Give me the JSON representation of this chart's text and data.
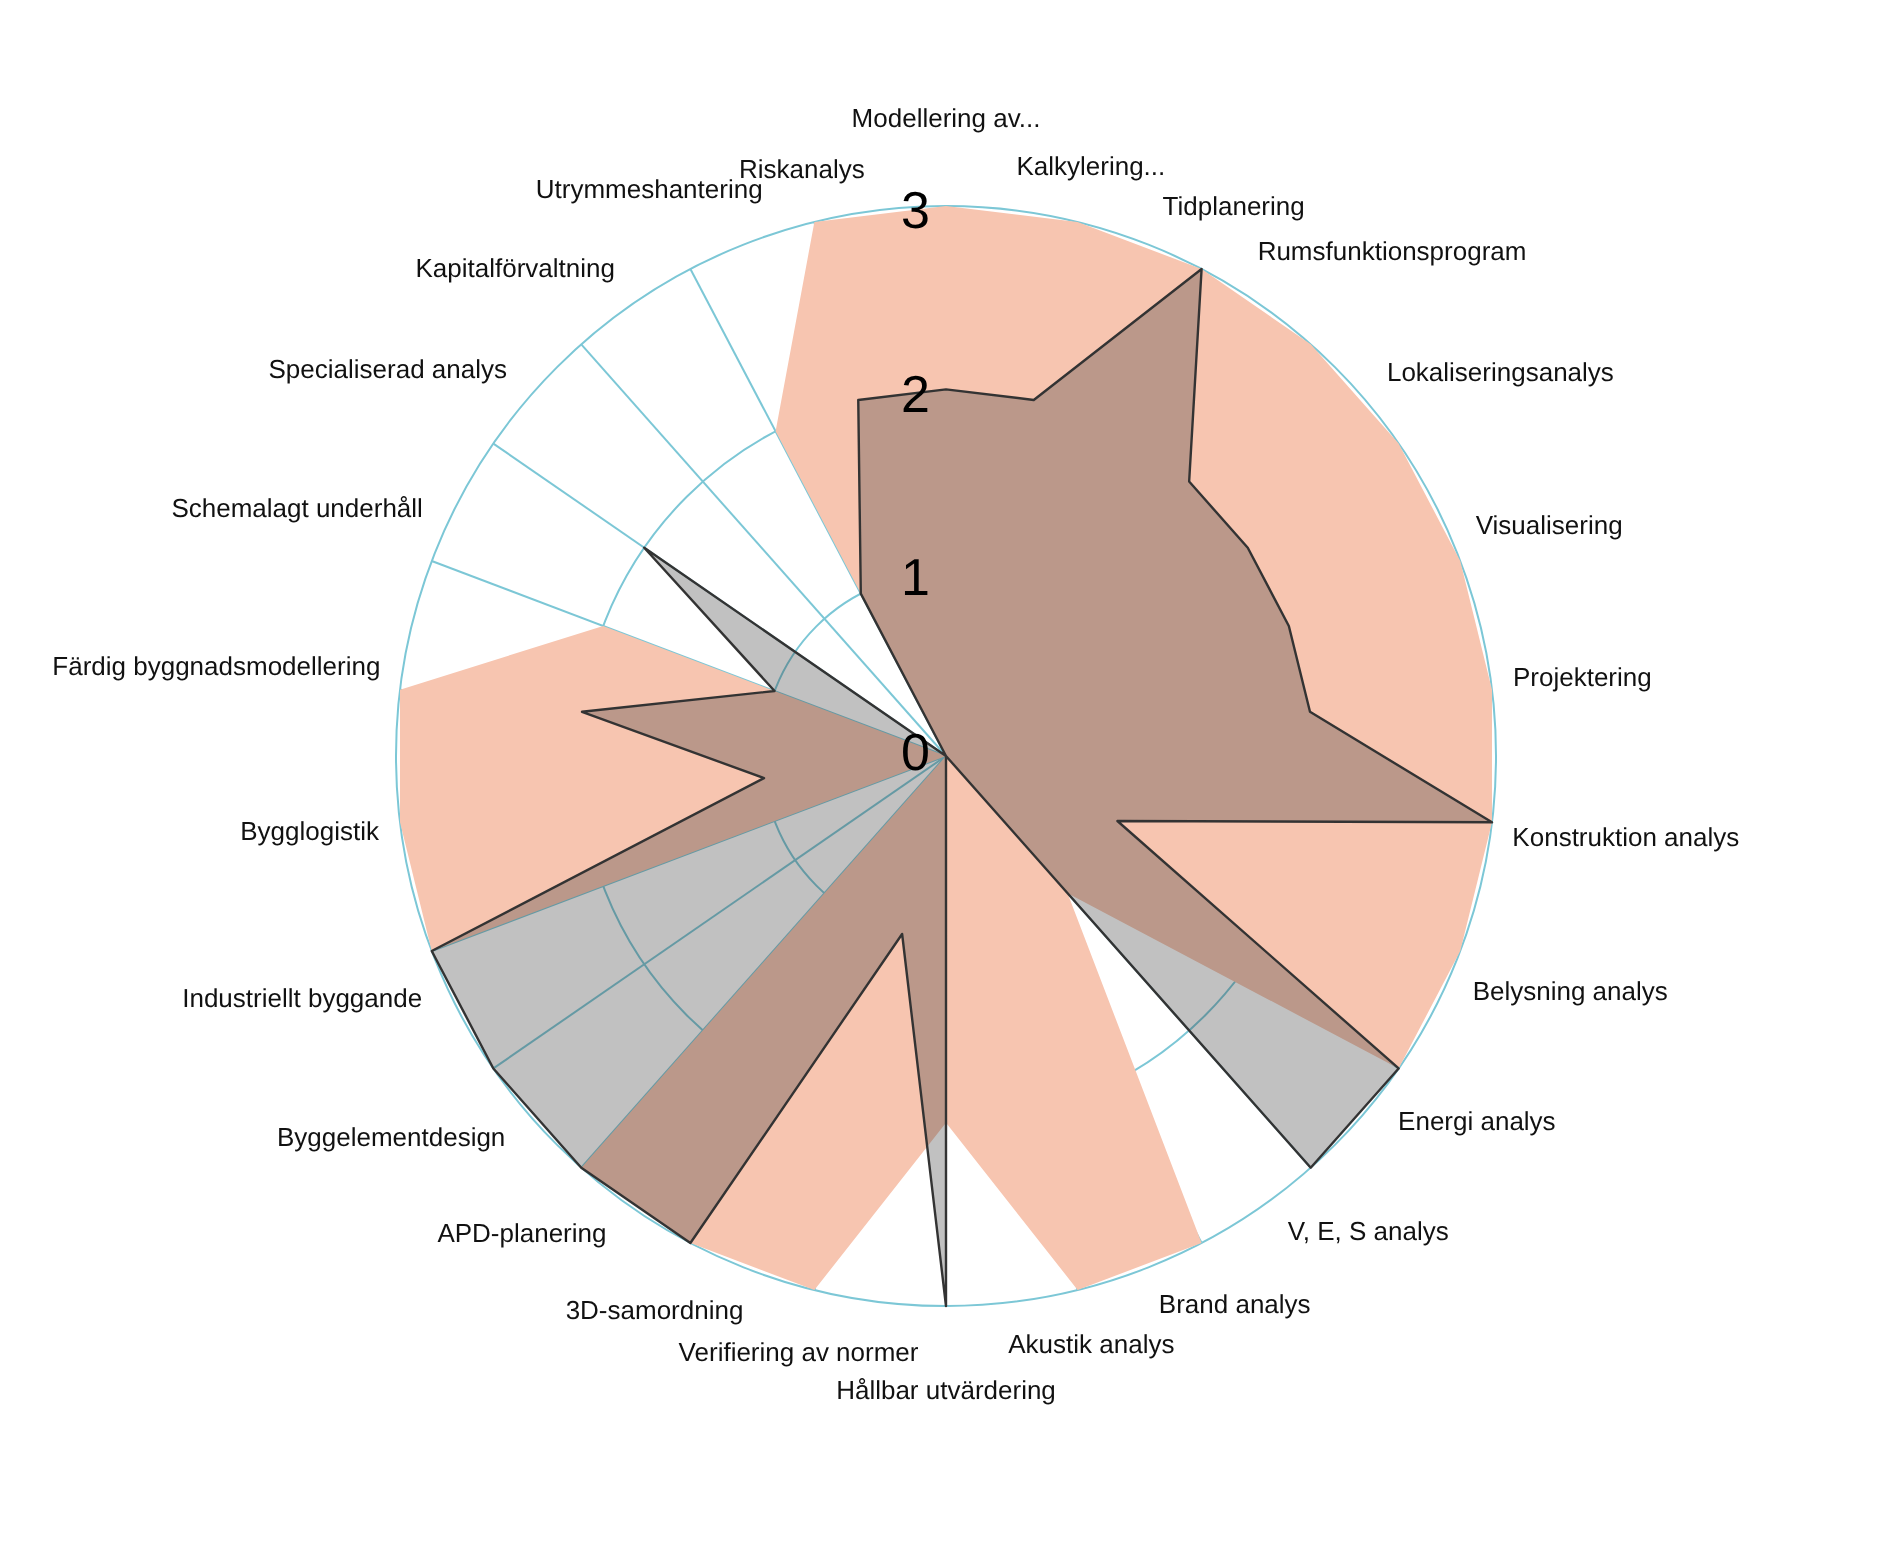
{
  "chart_data": {
    "type": "radar",
    "categories": [
      "Modellering av...",
      "Kalkylering...",
      "Tidplanering",
      "Rumsfunktionsprogram",
      "Lokaliseringsanalys",
      "Visualisering",
      "Projektering",
      "Konstruktion analys",
      "Belysning analys",
      "Energi analys",
      "V, E, S analys",
      "Brand analys",
      "Akustik analys",
      "Hållbar utvärdering",
      "Verifiering av normer",
      "3D-samordning",
      "APD-planering",
      "Byggelementdesign",
      "Industriellt byggande",
      "Bygglogistik",
      "Färdig byggnadsmodellering",
      "Schemalagt underhåll",
      "Specialiserad analys",
      "Kapitalförvaltning",
      "Utrymmeshantering",
      "Riskanalys"
    ],
    "series": [
      {
        "color": "#f7c5b0",
        "values": [
          3,
          3,
          3,
          3,
          3,
          3,
          3,
          3,
          3,
          3,
          1,
          3,
          3,
          2,
          3,
          3,
          3,
          0,
          3,
          3,
          3,
          2,
          0,
          0,
          2,
          3
        ]
      },
      {
        "color": "#333333",
        "values": [
          2,
          2,
          3,
          2,
          2,
          2,
          2,
          3,
          1,
          3,
          3,
          0,
          0,
          3,
          1,
          3,
          3,
          3,
          3,
          1,
          2,
          1,
          2,
          0,
          1,
          2
        ]
      }
    ],
    "ylim": [
      0,
      3
    ],
    "yticks": [
      0,
      1,
      2,
      3
    ],
    "grid": true,
    "marker": "none"
  }
}
